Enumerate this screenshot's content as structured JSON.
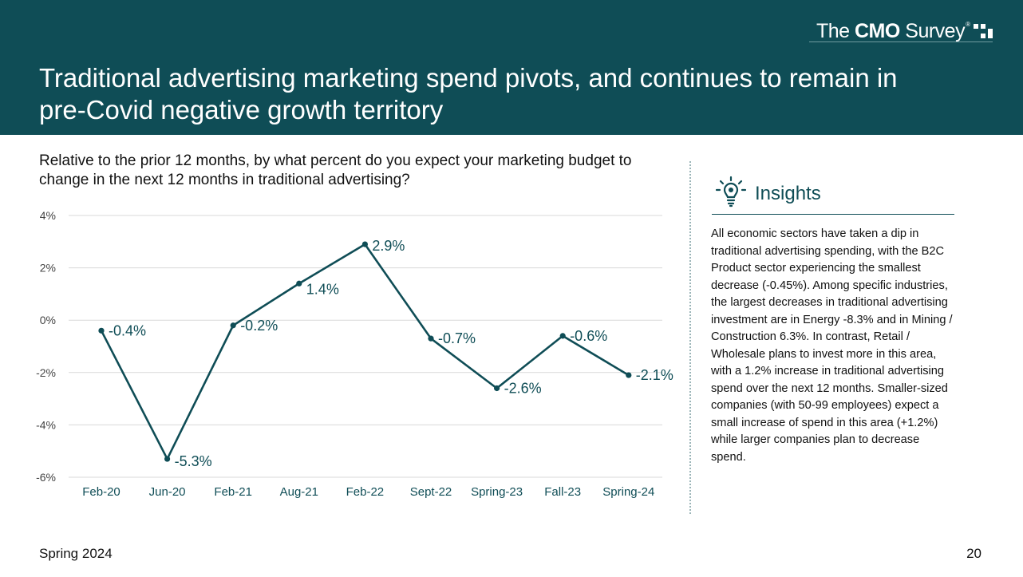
{
  "header": {
    "logo_text_pre": "The ",
    "logo_text_bold": "CMO",
    "logo_text_post": " Survey",
    "logo_reg": "®",
    "title": "Traditional advertising marketing spend pivots, and continues to remain in pre-Covid negative growth territory"
  },
  "question": "Relative to the prior 12 months, by what percent do you expect your marketing budget to change in the next 12 months in traditional advertising?",
  "chart_data": {
    "type": "line",
    "categories": [
      "Feb-20",
      "Jun-20",
      "Feb-21",
      "Aug-21",
      "Feb-22",
      "Sept-22",
      "Spring-23",
      "Fall-23",
      "Spring-24"
    ],
    "values": [
      -0.4,
      -5.3,
      -0.2,
      1.4,
      2.9,
      -0.7,
      -2.6,
      -0.6,
      -2.1
    ],
    "data_labels": [
      "-0.4%",
      "-5.3%",
      "-0.2%",
      "1.4%",
      "2.9%",
      "-0.7%",
      "-2.6%",
      "-0.6%",
      "-2.1%"
    ],
    "yticks": [
      4,
      2,
      0,
      -2,
      -4,
      -6
    ],
    "ytick_labels": [
      "4%",
      "2%",
      "0%",
      "-2%",
      "-4%",
      "-6%"
    ],
    "ylim": [
      -6,
      4
    ],
    "grid": true,
    "line_color": "#0f4d56"
  },
  "insights": {
    "title": "Insights",
    "icon": "lightbulb-gear-icon",
    "body": "All economic sectors have taken a dip in traditional advertising spending, with the B2C Product sector experiencing the smallest decrease (-0.45%). Among specific industries, the largest decreases in traditional advertising investment are in Energy -8.3% and in Mining / Construction 6.3%. In contrast, Retail / Wholesale plans to invest more in this area, with a 1.2% increase in traditional advertising spend over the next 12 months. Smaller-sized companies (with 50-99 employees) expect a small increase of spend in this area (+1.2%) while larger companies plan to decrease spend."
  },
  "footer": {
    "left": "Spring 2024",
    "page_number": "20"
  },
  "colors": {
    "brand": "#0f4d56",
    "grid": "#d9d9d9"
  }
}
